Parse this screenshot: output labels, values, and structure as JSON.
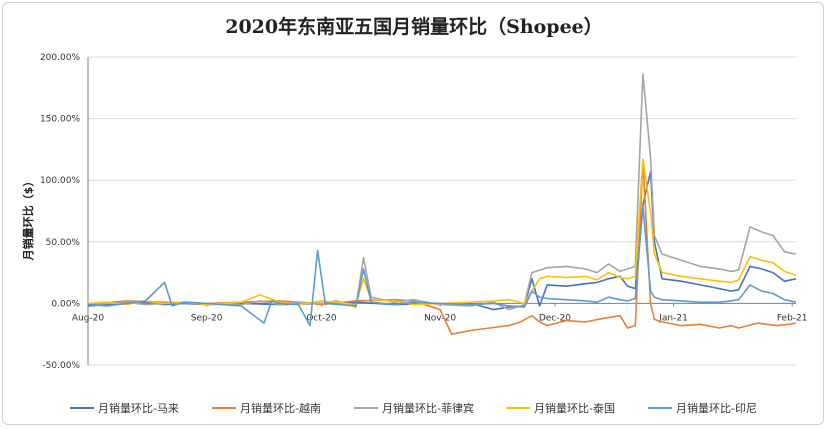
{
  "chart_data": {
    "type": "line",
    "title": "2020年东南亚五国月销量环比（Shopee）",
    "ylabel": "月销量环比（$）",
    "xlabel": "",
    "ylim": [
      -50,
      200
    ],
    "y_ticks": [
      "-50.00%",
      "0.00%",
      "50.00%",
      "100.00%",
      "150.00%",
      "200.00%"
    ],
    "y_tick_values": [
      -50,
      0,
      50,
      100,
      150,
      200
    ],
    "x_range": [
      0,
      185
    ],
    "x_tick_labels": [
      "Aug-20",
      "Sep-20",
      "Oct-20",
      "Nov-20",
      "Dec-20",
      "Jan-21",
      "Feb-21"
    ],
    "x_tick_values": [
      0,
      31,
      61,
      92,
      122,
      153,
      184
    ],
    "grid": "horizontal",
    "legend": "bottom",
    "series": [
      {
        "name": "月销量环比-马来",
        "color": "#4472c4",
        "points": [
          [
            0,
            -2
          ],
          [
            5,
            -1
          ],
          [
            10,
            0
          ],
          [
            15,
            1
          ],
          [
            20,
            -1
          ],
          [
            25,
            0
          ],
          [
            31,
            -1
          ],
          [
            40,
            0
          ],
          [
            50,
            -1
          ],
          [
            61,
            0
          ],
          [
            70,
            1
          ],
          [
            80,
            -1
          ],
          [
            92,
            0
          ],
          [
            100,
            0
          ],
          [
            106,
            -5
          ],
          [
            110,
            -3
          ],
          [
            114,
            -2
          ],
          [
            116,
            20
          ],
          [
            118,
            -2
          ],
          [
            120,
            15
          ],
          [
            125,
            14
          ],
          [
            130,
            16
          ],
          [
            133,
            17
          ],
          [
            136,
            20
          ],
          [
            139,
            22
          ],
          [
            141,
            14
          ],
          [
            143,
            12
          ],
          [
            145,
            80
          ],
          [
            147,
            107
          ],
          [
            148,
            50
          ],
          [
            150,
            20
          ],
          [
            155,
            18
          ],
          [
            160,
            15
          ],
          [
            165,
            12
          ],
          [
            168,
            10
          ],
          [
            170,
            11
          ],
          [
            173,
            30
          ],
          [
            176,
            28
          ],
          [
            179,
            25
          ],
          [
            182,
            18
          ],
          [
            185,
            20
          ]
        ]
      },
      {
        "name": "月销量环比-越南",
        "color": "#ed7d31",
        "points": [
          [
            0,
            -1
          ],
          [
            10,
            2
          ],
          [
            20,
            1
          ],
          [
            31,
            0
          ],
          [
            40,
            1
          ],
          [
            50,
            2
          ],
          [
            55,
            1
          ],
          [
            61,
            -1
          ],
          [
            70,
            2
          ],
          [
            80,
            3
          ],
          [
            85,
            2
          ],
          [
            92,
            -5
          ],
          [
            95,
            -25
          ],
          [
            100,
            -22
          ],
          [
            105,
            -20
          ],
          [
            110,
            -18
          ],
          [
            113,
            -15
          ],
          [
            116,
            -10
          ],
          [
            118,
            -15
          ],
          [
            120,
            -18
          ],
          [
            125,
            -14
          ],
          [
            130,
            -15
          ],
          [
            135,
            -12
          ],
          [
            139,
            -10
          ],
          [
            141,
            -20
          ],
          [
            143,
            -18
          ],
          [
            145,
            115
          ],
          [
            147,
            0
          ],
          [
            148,
            -13
          ],
          [
            150,
            -15
          ],
          [
            155,
            -18
          ],
          [
            160,
            -17
          ],
          [
            165,
            -20
          ],
          [
            168,
            -18
          ],
          [
            170,
            -20
          ],
          [
            175,
            -16
          ],
          [
            180,
            -18
          ],
          [
            183,
            -17
          ],
          [
            185,
            -16
          ]
        ]
      },
      {
        "name": "月销量环比-菲律宾",
        "color": "#a5a5a5",
        "points": [
          [
            0,
            -1
          ],
          [
            5,
            0
          ],
          [
            10,
            1
          ],
          [
            15,
            -1
          ],
          [
            20,
            0
          ],
          [
            25,
            1
          ],
          [
            31,
            0
          ],
          [
            40,
            -1
          ],
          [
            45,
            2
          ],
          [
            50,
            -1
          ],
          [
            55,
            1
          ],
          [
            61,
            0
          ],
          [
            65,
            2
          ],
          [
            70,
            -3
          ],
          [
            72,
            37
          ],
          [
            74,
            5
          ],
          [
            80,
            1
          ],
          [
            85,
            3
          ],
          [
            92,
            -1
          ],
          [
            100,
            -2
          ],
          [
            106,
            1
          ],
          [
            110,
            -5
          ],
          [
            114,
            -1
          ],
          [
            116,
            25
          ],
          [
            118,
            27
          ],
          [
            120,
            29
          ],
          [
            125,
            30
          ],
          [
            130,
            28
          ],
          [
            133,
            25
          ],
          [
            136,
            32
          ],
          [
            139,
            26
          ],
          [
            141,
            28
          ],
          [
            143,
            30
          ],
          [
            145,
            186
          ],
          [
            147,
            118
          ],
          [
            148,
            55
          ],
          [
            150,
            40
          ],
          [
            155,
            35
          ],
          [
            160,
            30
          ],
          [
            165,
            28
          ],
          [
            168,
            26
          ],
          [
            170,
            27
          ],
          [
            173,
            62
          ],
          [
            176,
            58
          ],
          [
            179,
            55
          ],
          [
            182,
            42
          ],
          [
            185,
            40
          ]
        ]
      },
      {
        "name": "月销量环比-泰国",
        "color": "#ffc000",
        "points": [
          [
            0,
            0
          ],
          [
            5,
            1
          ],
          [
            10,
            -1
          ],
          [
            15,
            2
          ],
          [
            20,
            0
          ],
          [
            25,
            1
          ],
          [
            31,
            -1
          ],
          [
            40,
            1
          ],
          [
            45,
            7
          ],
          [
            50,
            1
          ],
          [
            55,
            -1
          ],
          [
            61,
            2
          ],
          [
            65,
            1
          ],
          [
            70,
            -1
          ],
          [
            72,
            20
          ],
          [
            74,
            3
          ],
          [
            80,
            2
          ],
          [
            85,
            -1
          ],
          [
            92,
            0
          ],
          [
            100,
            1
          ],
          [
            106,
            2
          ],
          [
            110,
            3
          ],
          [
            114,
            0
          ],
          [
            116,
            10
          ],
          [
            118,
            20
          ],
          [
            120,
            22
          ],
          [
            125,
            21
          ],
          [
            130,
            22
          ],
          [
            133,
            19
          ],
          [
            136,
            25
          ],
          [
            139,
            21
          ],
          [
            141,
            20
          ],
          [
            143,
            22
          ],
          [
            145,
            117
          ],
          [
            147,
            74
          ],
          [
            148,
            40
          ],
          [
            150,
            25
          ],
          [
            155,
            22
          ],
          [
            160,
            20
          ],
          [
            165,
            18
          ],
          [
            168,
            17
          ],
          [
            170,
            19
          ],
          [
            173,
            38
          ],
          [
            176,
            35
          ],
          [
            179,
            33
          ],
          [
            182,
            26
          ],
          [
            185,
            23
          ]
        ]
      },
      {
        "name": "月销量环比-印尼",
        "color": "#5b9bd5",
        "points": [
          [
            0,
            -1
          ],
          [
            5,
            -2
          ],
          [
            10,
            0
          ],
          [
            15,
            2
          ],
          [
            20,
            17
          ],
          [
            22,
            -2
          ],
          [
            25,
            1
          ],
          [
            31,
            0
          ],
          [
            40,
            -2
          ],
          [
            46,
            -16
          ],
          [
            48,
            2
          ],
          [
            50,
            0
          ],
          [
            55,
            -1
          ],
          [
            58,
            -18
          ],
          [
            60,
            43
          ],
          [
            62,
            0
          ],
          [
            70,
            -2
          ],
          [
            72,
            28
          ],
          [
            74,
            1
          ],
          [
            80,
            -1
          ],
          [
            85,
            1
          ],
          [
            92,
            0
          ],
          [
            100,
            -1
          ],
          [
            106,
            0
          ],
          [
            110,
            -2
          ],
          [
            114,
            -3
          ],
          [
            116,
            10
          ],
          [
            118,
            5
          ],
          [
            120,
            4
          ],
          [
            125,
            3
          ],
          [
            130,
            2
          ],
          [
            133,
            1
          ],
          [
            136,
            5
          ],
          [
            139,
            3
          ],
          [
            141,
            2
          ],
          [
            143,
            4
          ],
          [
            145,
            79
          ],
          [
            147,
            10
          ],
          [
            148,
            5
          ],
          [
            150,
            3
          ],
          [
            155,
            2
          ],
          [
            160,
            1
          ],
          [
            165,
            1
          ],
          [
            168,
            2
          ],
          [
            170,
            3
          ],
          [
            173,
            15
          ],
          [
            176,
            10
          ],
          [
            179,
            8
          ],
          [
            182,
            3
          ],
          [
            185,
            1
          ]
        ]
      }
    ]
  }
}
